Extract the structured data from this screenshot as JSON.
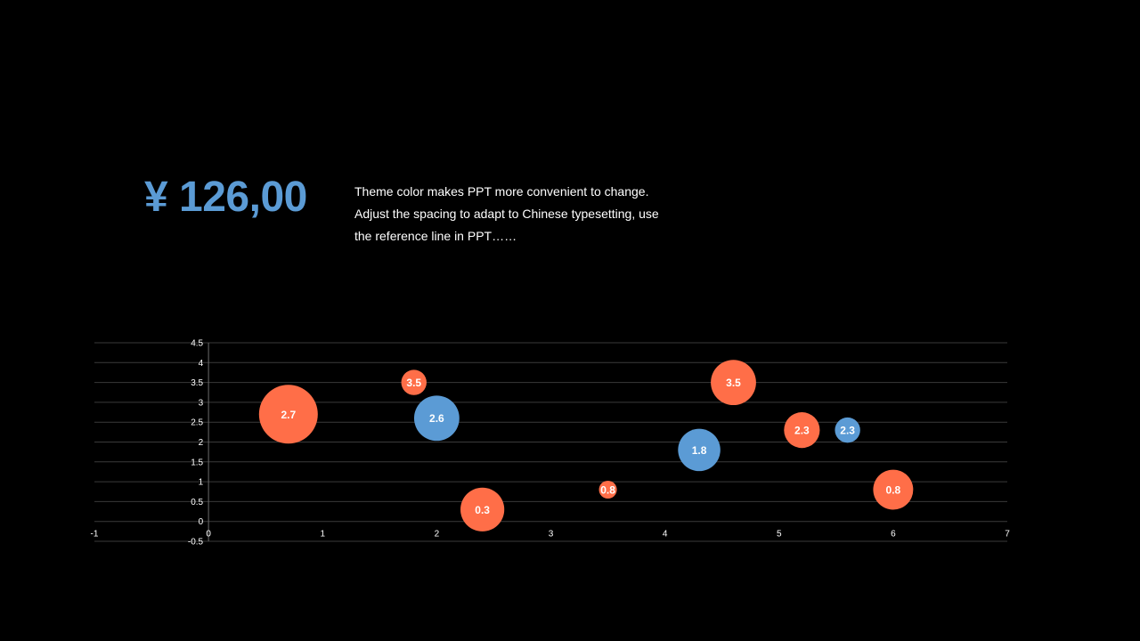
{
  "header": {
    "price": "¥ 126,00",
    "description_lines": [
      "Theme color makes PPT more convenient to change.",
      "Adjust the spacing to adapt to Chinese typesetting, use",
      "the reference line in PPT……"
    ]
  },
  "colors": {
    "background": "#000000",
    "accent_blue": "#5b9bd5",
    "accent_orange": "#ff6e48",
    "gridline": "#3a3a3a",
    "text": "#ffffff"
  },
  "chart_data": {
    "type": "scatter",
    "subtype": "bubble",
    "title": "",
    "xlabel": "",
    "ylabel": "",
    "xlim": [
      -1,
      7
    ],
    "ylim": [
      -0.5,
      4.5
    ],
    "x_ticks": [
      "-1",
      "0",
      "1",
      "2",
      "3",
      "4",
      "5",
      "6",
      "7"
    ],
    "y_ticks": [
      "-0.5",
      "0",
      "0.5",
      "1",
      "1.5",
      "2",
      "2.5",
      "3",
      "3.5",
      "4",
      "4.5"
    ],
    "grid": true,
    "legend": "none",
    "series": [
      {
        "color": "#ff6e48",
        "points": [
          {
            "x": 0.7,
            "y": 2.7,
            "size": 2.7,
            "label": "2.7"
          },
          {
            "x": 1.8,
            "y": 3.5,
            "size": 0.5,
            "label": "3.5"
          },
          {
            "x": 2.4,
            "y": 0.3,
            "size": 1.5,
            "label": "0.3"
          },
          {
            "x": 3.5,
            "y": 0.8,
            "size": 0.25,
            "label": "0.8"
          },
          {
            "x": 4.6,
            "y": 3.5,
            "size": 1.6,
            "label": "3.5"
          },
          {
            "x": 5.2,
            "y": 2.3,
            "size": 1.0,
            "label": "2.3"
          },
          {
            "x": 6.0,
            "y": 0.8,
            "size": 1.25,
            "label": "0.8"
          }
        ]
      },
      {
        "color": "#5b9bd5",
        "points": [
          {
            "x": 2.0,
            "y": 2.6,
            "size": 1.6,
            "label": "2.6"
          },
          {
            "x": 4.3,
            "y": 1.8,
            "size": 1.4,
            "label": "1.8"
          },
          {
            "x": 5.6,
            "y": 2.3,
            "size": 0.5,
            "label": "2.3"
          }
        ]
      }
    ]
  }
}
